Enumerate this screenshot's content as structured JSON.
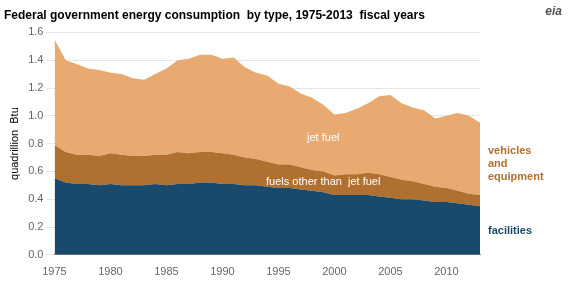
{
  "chart_data": {
    "type": "area",
    "title": "Federal government energy consumption  by type, 1975-2013  fiscal years",
    "ylabel": "quadrillion  Btu",
    "x": [
      1975,
      1976,
      1977,
      1978,
      1979,
      1980,
      1981,
      1982,
      1983,
      1984,
      1985,
      1986,
      1987,
      1988,
      1989,
      1990,
      1991,
      1992,
      1993,
      1994,
      1995,
      1996,
      1997,
      1998,
      1999,
      2000,
      2001,
      2002,
      2003,
      2004,
      2005,
      2006,
      2007,
      2008,
      2009,
      2010,
      2011,
      2012,
      2013
    ],
    "series": [
      {
        "name": "facilities",
        "color": "#1a4a6b",
        "values": [
          0.55,
          0.52,
          0.51,
          0.51,
          0.5,
          0.51,
          0.5,
          0.5,
          0.5,
          0.51,
          0.5,
          0.51,
          0.51,
          0.52,
          0.52,
          0.51,
          0.51,
          0.5,
          0.5,
          0.49,
          0.48,
          0.48,
          0.47,
          0.46,
          0.45,
          0.43,
          0.43,
          0.43,
          0.43,
          0.42,
          0.41,
          0.4,
          0.4,
          0.39,
          0.38,
          0.38,
          0.37,
          0.36,
          0.35
        ]
      },
      {
        "name": "fuels other than  jet fuel",
        "color": "#b07030",
        "values": [
          0.24,
          0.22,
          0.21,
          0.21,
          0.21,
          0.22,
          0.22,
          0.21,
          0.21,
          0.21,
          0.22,
          0.23,
          0.22,
          0.22,
          0.22,
          0.22,
          0.21,
          0.2,
          0.19,
          0.18,
          0.17,
          0.17,
          0.16,
          0.15,
          0.15,
          0.14,
          0.15,
          0.15,
          0.16,
          0.16,
          0.15,
          0.14,
          0.13,
          0.12,
          0.11,
          0.1,
          0.09,
          0.08,
          0.08
        ]
      },
      {
        "name": "jet fuel",
        "color": "#e8aa70",
        "values": [
          0.76,
          0.66,
          0.65,
          0.62,
          0.62,
          0.58,
          0.58,
          0.56,
          0.55,
          0.58,
          0.62,
          0.66,
          0.68,
          0.7,
          0.7,
          0.68,
          0.7,
          0.65,
          0.62,
          0.62,
          0.58,
          0.56,
          0.53,
          0.52,
          0.48,
          0.44,
          0.44,
          0.47,
          0.5,
          0.56,
          0.59,
          0.55,
          0.53,
          0.53,
          0.49,
          0.52,
          0.56,
          0.56,
          0.52
        ]
      }
    ],
    "stacked": true,
    "xlim": [
      1975,
      2013
    ],
    "xticks": [
      1975,
      1980,
      1985,
      1990,
      1995,
      2000,
      2005,
      2010
    ],
    "ylim": [
      0,
      1.6
    ],
    "yticks": [
      {
        "value": 0,
        "label": "0.0"
      },
      0.2,
      0.4,
      0.6,
      0.8,
      {
        "value": 1,
        "label": "1.0"
      },
      1.2,
      1.4,
      1.6
    ],
    "grid": "y",
    "annotations": [
      {
        "text": "vehicles\nand\nequipment",
        "color": "#b07030"
      },
      {
        "text": "eia"
      }
    ]
  }
}
